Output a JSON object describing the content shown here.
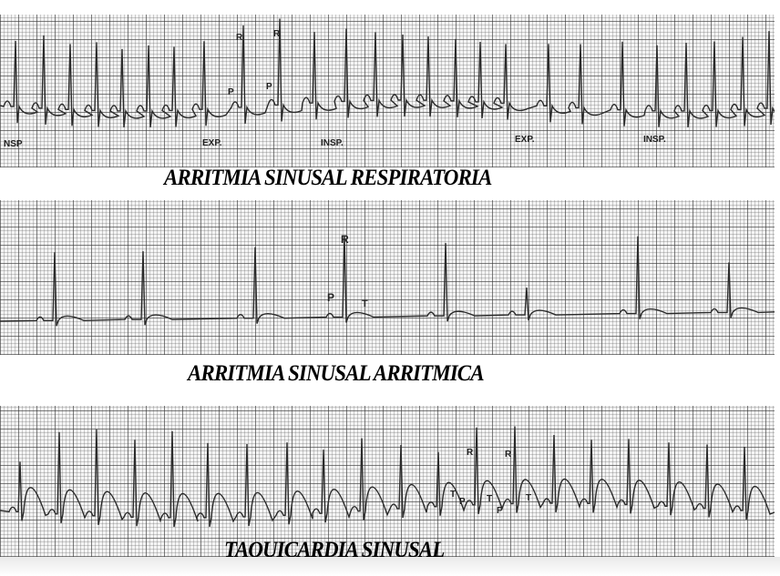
{
  "figure": {
    "strips": [
      {
        "caption": "ARRITMIA SINUSAL RESPIRATORIA",
        "labels": {
          "r1": "R",
          "r2": "R",
          "p1": "P",
          "p2": "P",
          "insp1": "NSP",
          "exp1": "EXP.",
          "insp2": "INSP.",
          "exp2": "EXP.",
          "insp3": "INSP."
        }
      },
      {
        "caption": "ARRITMIA SINUSAL ARRITMICA",
        "labels": {
          "r": "R",
          "p": "P",
          "t": "T"
        }
      },
      {
        "caption": "TAQUICARDIA SINUSAL",
        "labels": {
          "r1": "R",
          "r2": "R",
          "t1": "T",
          "p1": "P",
          "t2": "T",
          "p2": "P",
          "t3": "T"
        }
      }
    ],
    "colors": {
      "trace": "#2a2a2a",
      "grid": "#5a5a5a",
      "paper": "#f4f4f4"
    }
  }
}
